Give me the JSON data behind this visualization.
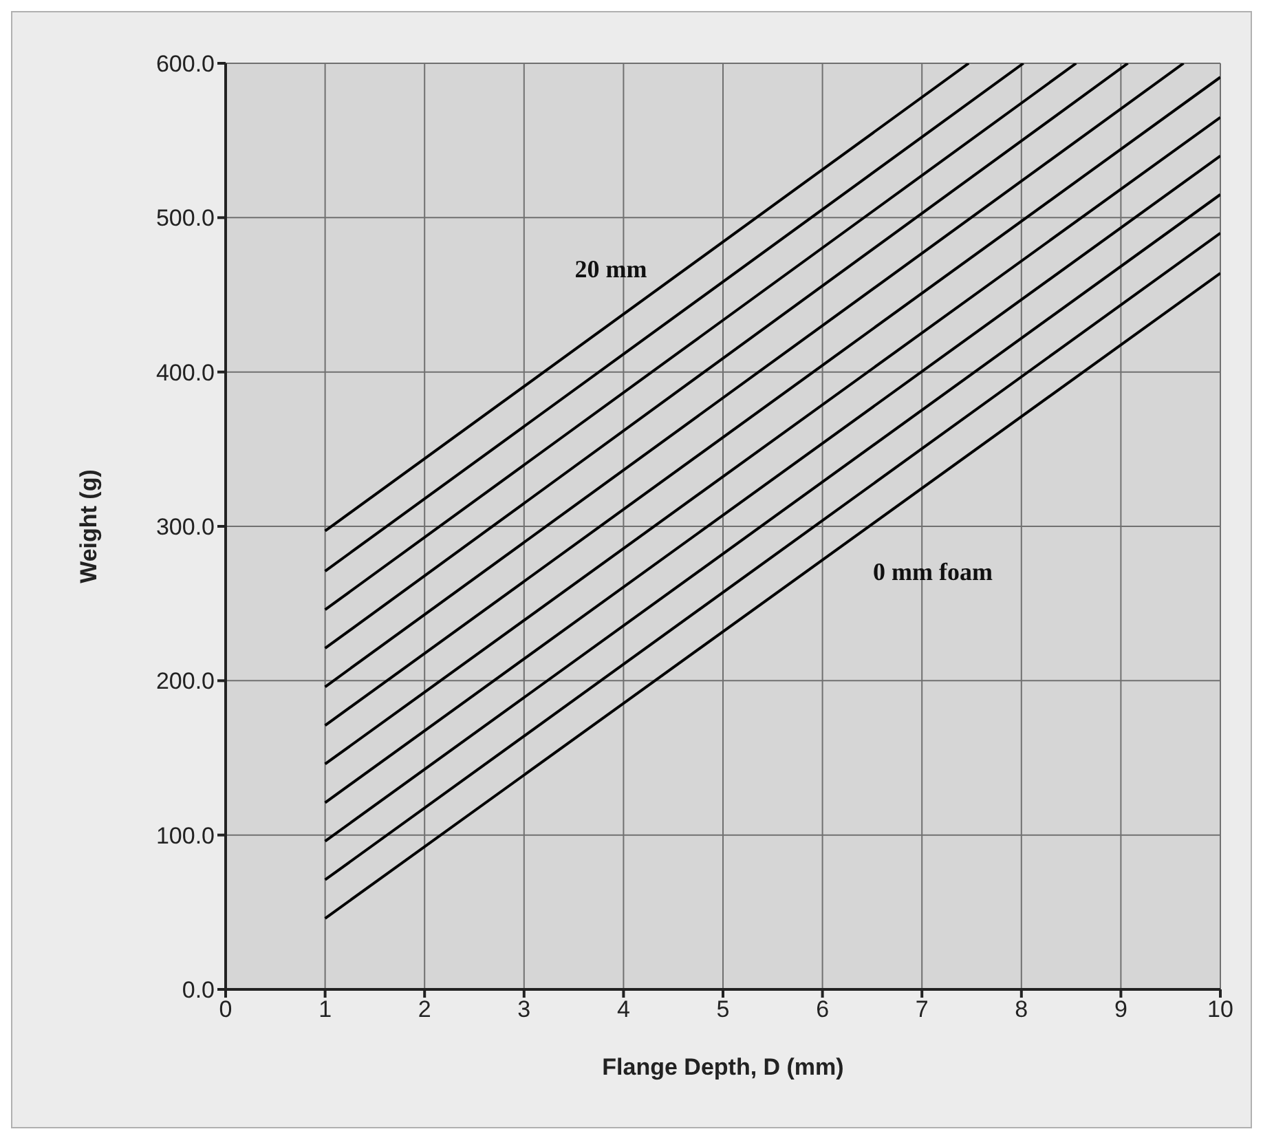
{
  "chart_data": {
    "type": "line",
    "xlabel": "Flange Depth, D (mm)",
    "ylabel": "Weight (g)",
    "xlim": [
      0,
      10
    ],
    "xticks": [
      0,
      1,
      2,
      3,
      4,
      5,
      6,
      7,
      8,
      9,
      10
    ],
    "ylim": [
      0,
      600
    ],
    "yticks": [
      {
        "value": 0,
        "label": "0.0"
      },
      {
        "value": 100,
        "label": "100.0"
      },
      {
        "value": 200,
        "label": "200.0"
      },
      {
        "value": 300,
        "label": "300.0"
      },
      {
        "value": 400,
        "label": "400.0"
      },
      {
        "value": 500,
        "label": "500.0"
      },
      {
        "value": 600,
        "label": "600.0"
      }
    ],
    "grid": true,
    "marker": "none",
    "line_style": "solid",
    "series": [
      {
        "color": "#000000",
        "x": [
          1,
          10
        ],
        "values": [
          46,
          464
        ]
      },
      {
        "color": "#000000",
        "x": [
          1,
          10
        ],
        "values": [
          71,
          490
        ]
      },
      {
        "color": "#000000",
        "x": [
          1,
          10
        ],
        "values": [
          96,
          515
        ]
      },
      {
        "color": "#000000",
        "x": [
          1,
          10
        ],
        "values": [
          121,
          540
        ]
      },
      {
        "color": "#000000",
        "x": [
          1,
          10
        ],
        "values": [
          146,
          565
        ]
      },
      {
        "color": "#000000",
        "x": [
          1,
          10
        ],
        "values": [
          171,
          591
        ]
      },
      {
        "color": "#000000",
        "x": [
          1,
          9.63
        ],
        "values": [
          196,
          600
        ]
      },
      {
        "color": "#000000",
        "x": [
          1,
          9.07
        ],
        "values": [
          221,
          600
        ]
      },
      {
        "color": "#000000",
        "x": [
          1,
          8.55
        ],
        "values": [
          246,
          600
        ]
      },
      {
        "color": "#000000",
        "x": [
          1,
          8.02
        ],
        "values": [
          271,
          600
        ]
      },
      {
        "color": "#000000",
        "x": [
          1,
          7.47
        ],
        "values": [
          297,
          600
        ]
      }
    ],
    "annotations": [
      "20 mm",
      "0 mm foam"
    ]
  }
}
